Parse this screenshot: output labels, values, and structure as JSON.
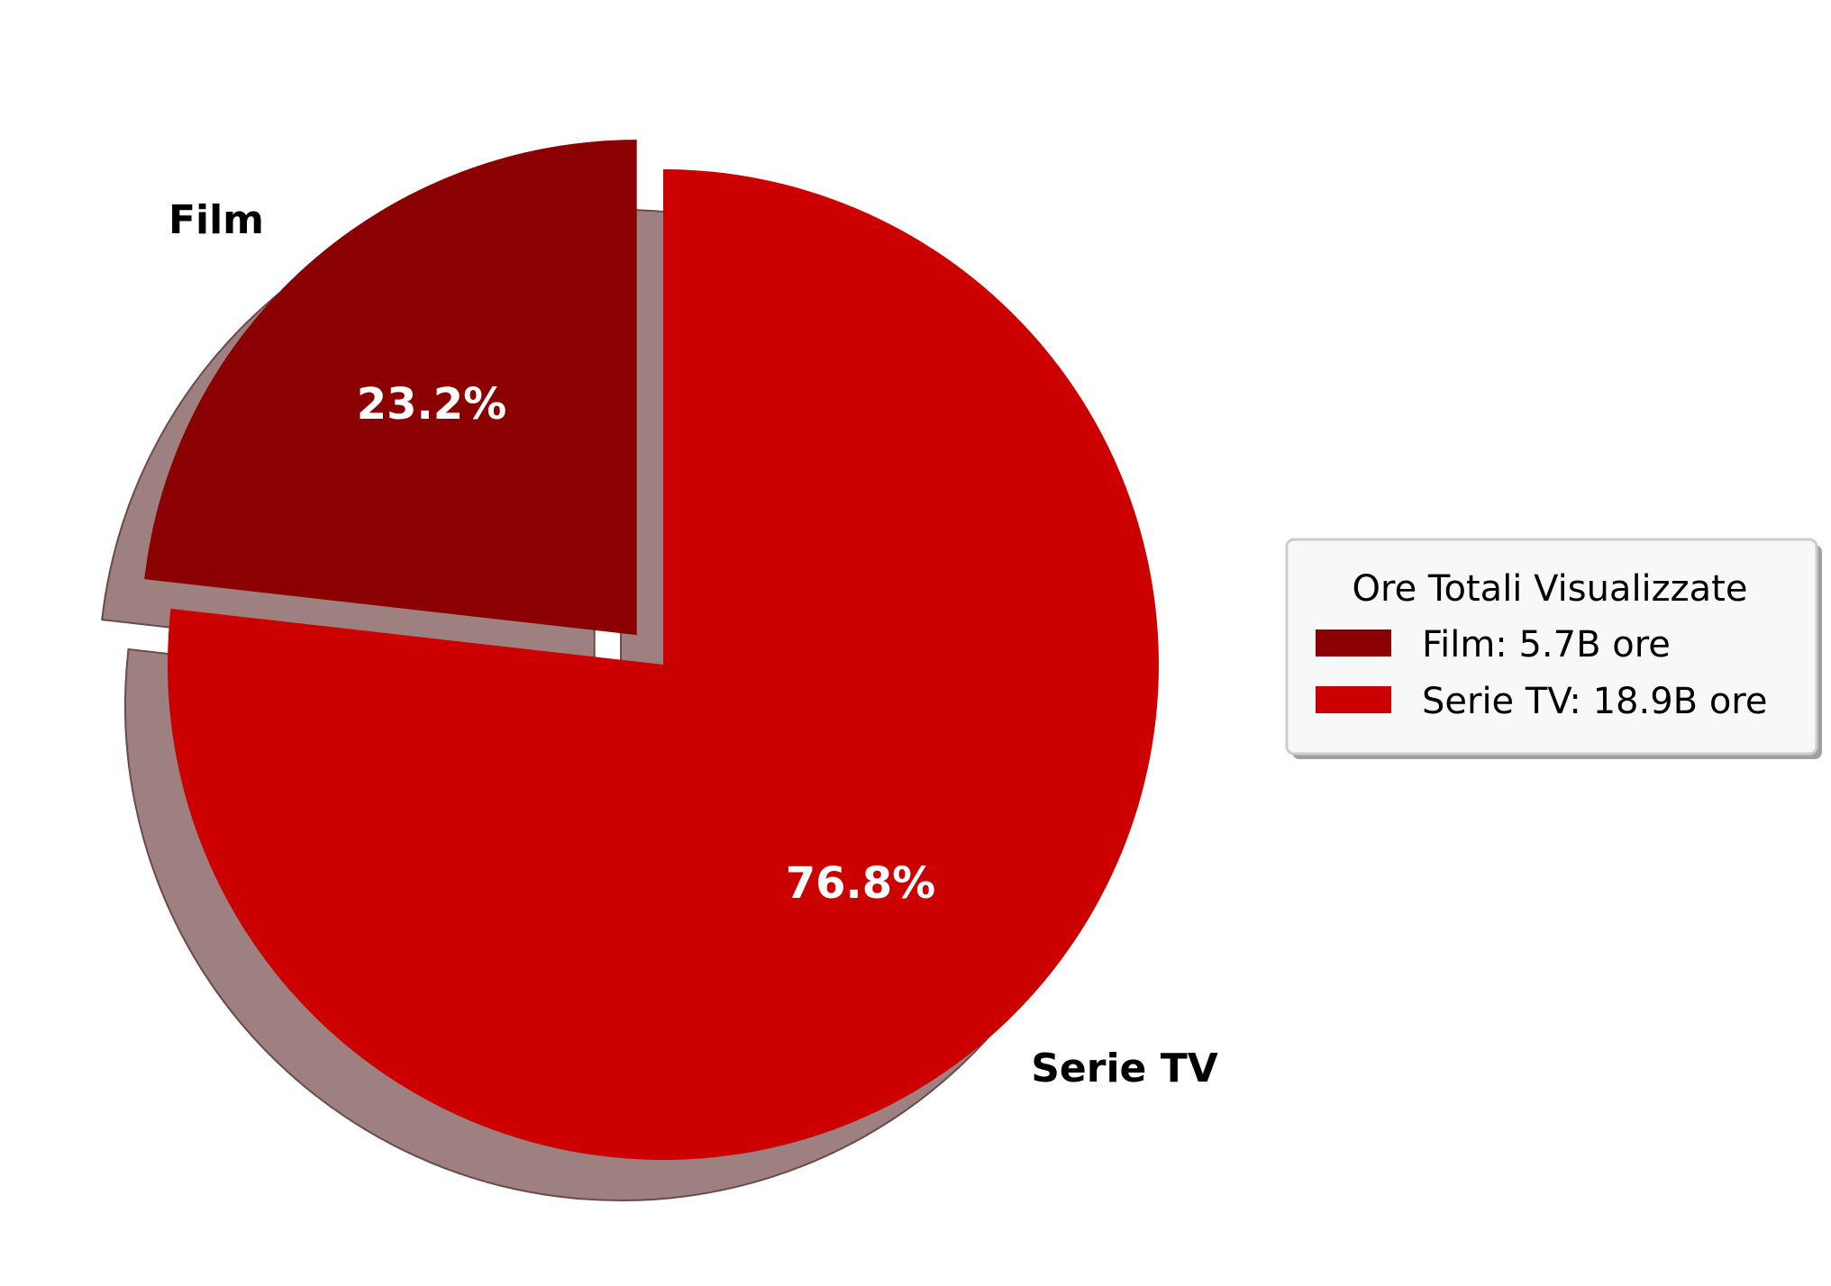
{
  "chart_data": {
    "type": "pie",
    "categories": [
      "Film",
      "Serie TV"
    ],
    "values": [
      23.2,
      76.8
    ],
    "percent_labels": [
      "23.2%",
      "76.8%"
    ],
    "colors": [
      "#8b0000",
      "#cc0000"
    ],
    "shadow_color": "#9e8080",
    "explode": [
      "Film"
    ],
    "shadow": true,
    "start_angle_deg": 90,
    "direction": "counterclockwise",
    "legend": {
      "title": "Ore Totali Visualizzate",
      "entries": [
        "Film: 5.7B ore",
        "Serie TV: 18.9B ore"
      ],
      "placement": "right"
    }
  }
}
